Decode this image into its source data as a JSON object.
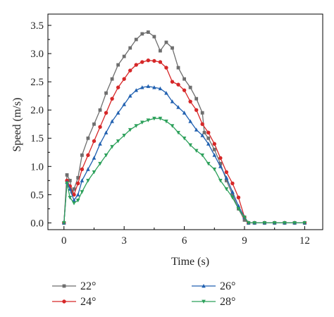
{
  "chart_data": {
    "type": "line",
    "title": "",
    "xlabel": "Time (s)",
    "ylabel": "Speed (m/s)",
    "xlim": [
      -0.8,
      12.9
    ],
    "ylim": [
      -0.12,
      3.7
    ],
    "xticks": [
      0,
      3,
      6,
      9,
      12
    ],
    "yticks": [
      0.0,
      0.5,
      1.0,
      1.5,
      2.0,
      2.5,
      3.0,
      3.5
    ],
    "xtick_labels": [
      "0",
      "3",
      "6",
      "9",
      "12"
    ],
    "ytick_labels": [
      "0.0",
      "0.5",
      "1.0",
      "1.5",
      "2.0",
      "2.5",
      "3.0",
      "3.5"
    ],
    "grid": false,
    "legend_position": "bottom",
    "series": [
      {
        "name": "22°",
        "color": "#6e6e6e",
        "marker": "square",
        "x": [
          0,
          0.15,
          0.3,
          0.4,
          0.5,
          0.7,
          0.9,
          1.2,
          1.5,
          1.8,
          2.1,
          2.4,
          2.7,
          3.0,
          3.3,
          3.6,
          3.9,
          4.2,
          4.5,
          4.8,
          5.1,
          5.4,
          5.7,
          6.0,
          6.3,
          6.6,
          6.9,
          7.0,
          7.2,
          7.5,
          7.8,
          8.1,
          8.4,
          8.7,
          9.0,
          9.2,
          9.5,
          10.0,
          10.5,
          11.0,
          11.5,
          12.0
        ],
        "y": [
          0,
          0.85,
          0.75,
          0.55,
          0.6,
          0.8,
          1.2,
          1.5,
          1.75,
          2.0,
          2.3,
          2.55,
          2.8,
          2.95,
          3.1,
          3.25,
          3.35,
          3.38,
          3.3,
          3.05,
          3.2,
          3.1,
          2.75,
          2.55,
          2.4,
          2.2,
          1.95,
          1.6,
          1.5,
          1.3,
          1.05,
          0.75,
          0.5,
          0.25,
          0.05,
          0,
          0,
          0,
          0,
          0,
          0,
          0
        ]
      },
      {
        "name": "24°",
        "color": "#d62728",
        "marker": "circle",
        "x": [
          0,
          0.15,
          0.3,
          0.5,
          0.7,
          0.9,
          1.2,
          1.5,
          1.8,
          2.1,
          2.4,
          2.7,
          3.0,
          3.3,
          3.6,
          3.9,
          4.2,
          4.5,
          4.8,
          5.1,
          5.4,
          5.7,
          6.0,
          6.3,
          6.6,
          6.9,
          7.2,
          7.5,
          7.8,
          8.1,
          8.4,
          8.7,
          9.0,
          9.2,
          9.5,
          10.0,
          10.5,
          11.0,
          11.5,
          12.0
        ],
        "y": [
          0,
          0.75,
          0.65,
          0.5,
          0.7,
          0.95,
          1.2,
          1.45,
          1.7,
          1.95,
          2.2,
          2.4,
          2.55,
          2.7,
          2.8,
          2.85,
          2.88,
          2.87,
          2.85,
          2.75,
          2.5,
          2.45,
          2.35,
          2.15,
          2.0,
          1.75,
          1.6,
          1.4,
          1.15,
          0.9,
          0.7,
          0.45,
          0.1,
          0,
          0,
          0,
          0,
          0,
          0,
          0
        ]
      },
      {
        "name": "26°",
        "color": "#2060b0",
        "marker": "triangle-up",
        "x": [
          0,
          0.15,
          0.3,
          0.5,
          0.7,
          0.9,
          1.2,
          1.5,
          1.8,
          2.1,
          2.4,
          2.7,
          3.0,
          3.3,
          3.6,
          3.9,
          4.2,
          4.5,
          4.8,
          5.1,
          5.4,
          5.7,
          6.0,
          6.3,
          6.6,
          6.9,
          7.2,
          7.5,
          7.8,
          8.1,
          8.4,
          8.7,
          9.0,
          9.2,
          9.5,
          10.0,
          10.5,
          11.0,
          11.5,
          12.0
        ],
        "y": [
          0,
          0.72,
          0.6,
          0.4,
          0.5,
          0.75,
          0.95,
          1.15,
          1.4,
          1.6,
          1.8,
          1.95,
          2.1,
          2.25,
          2.35,
          2.4,
          2.42,
          2.4,
          2.38,
          2.3,
          2.15,
          2.05,
          1.95,
          1.8,
          1.65,
          1.55,
          1.4,
          1.2,
          1.0,
          0.8,
          0.55,
          0.3,
          0.1,
          0,
          0,
          0,
          0,
          0,
          0,
          0
        ]
      },
      {
        "name": "28°",
        "color": "#2ca05a",
        "marker": "triangle-down",
        "x": [
          0,
          0.15,
          0.3,
          0.5,
          0.7,
          0.9,
          1.2,
          1.5,
          1.8,
          2.1,
          2.4,
          2.7,
          3.0,
          3.3,
          3.6,
          3.9,
          4.2,
          4.5,
          4.8,
          5.1,
          5.4,
          5.7,
          6.0,
          6.3,
          6.6,
          6.9,
          7.2,
          7.5,
          7.8,
          8.1,
          8.4,
          8.7,
          9.0,
          9.2,
          9.5,
          10.0,
          10.5,
          11.0,
          11.5,
          12.0
        ],
        "y": [
          0,
          0.7,
          0.45,
          0.35,
          0.4,
          0.55,
          0.75,
          0.9,
          1.05,
          1.2,
          1.35,
          1.45,
          1.55,
          1.65,
          1.72,
          1.78,
          1.82,
          1.85,
          1.85,
          1.8,
          1.72,
          1.6,
          1.5,
          1.38,
          1.28,
          1.2,
          1.05,
          0.95,
          0.75,
          0.6,
          0.45,
          0.25,
          0.1,
          0,
          0,
          0,
          0,
          0,
          0,
          0
        ]
      }
    ]
  }
}
